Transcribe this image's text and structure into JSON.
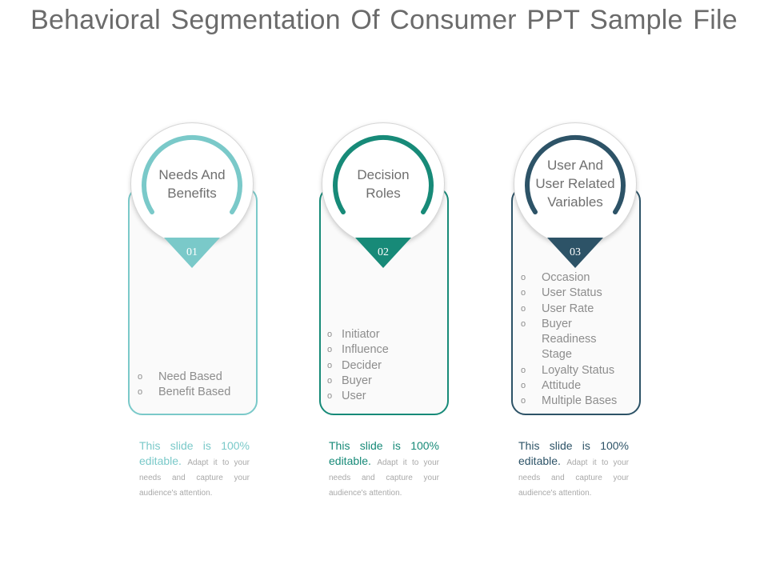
{
  "title": "Behavioral Segmentation Of Consumer PPT Sample File",
  "cards": [
    {
      "heading_lines": [
        "Needs And",
        "Benefits"
      ],
      "number": "01",
      "color": "#7ac9c9",
      "items": [
        "Need Based",
        "Benefit Based"
      ],
      "desc_lead": "This slide is 100% editable.",
      "desc_rest": "Adapt it to your needs and capture your audience's attention."
    },
    {
      "heading_lines": [
        "Decision",
        "Roles"
      ],
      "number": "02",
      "color": "#178a78",
      "items": [
        "Initiator",
        "Influence",
        "Decider",
        "Buyer",
        "User"
      ],
      "desc_lead": "This slide is 100% editable.",
      "desc_rest": "Adapt it to your needs and capture your audience's attention."
    },
    {
      "heading_lines": [
        "User And",
        "User Related",
        "Variables"
      ],
      "number": "03",
      "color": "#2d5367",
      "items": [
        "Occasion",
        "User Status",
        "User Rate",
        "Buyer Readiness Stage",
        "Loyalty Status",
        "Attitude",
        "Multiple Bases"
      ],
      "desc_lead": "This slide is 100% editable.",
      "desc_rest": "Adapt it to your needs and capture your audience's attention."
    }
  ],
  "bullet_glyph": "o"
}
